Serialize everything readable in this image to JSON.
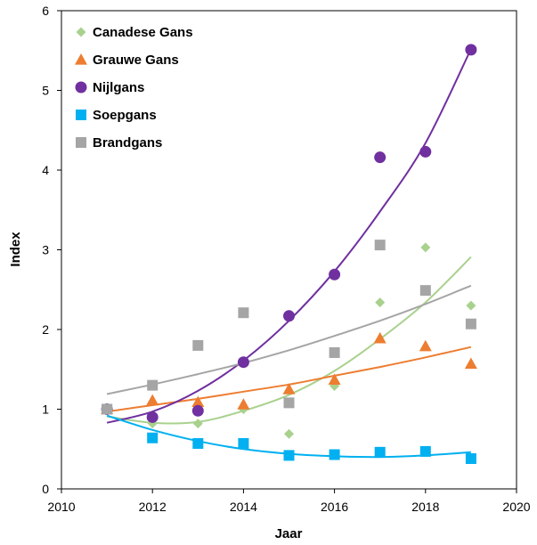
{
  "chart_data": {
    "type": "scatter",
    "xlabel": "Jaar",
    "ylabel": "Index",
    "xlim": [
      2010,
      2020
    ],
    "ylim": [
      0,
      6
    ],
    "x_ticks": [
      2010,
      2012,
      2014,
      2016,
      2018,
      2020
    ],
    "y_ticks": [
      0,
      1,
      2,
      3,
      4,
      5,
      6
    ],
    "grid": false,
    "legend_position": "top-left",
    "trendlines": true,
    "series": [
      {
        "name": "Canadese Gans",
        "marker": "diamond",
        "color": "#a9d18e",
        "x": [
          2011,
          2012,
          2013,
          2014,
          2015,
          2016,
          2017,
          2018,
          2019
        ],
        "y": [
          1.0,
          0.82,
          0.82,
          1.0,
          0.69,
          1.29,
          2.34,
          3.03,
          2.3
        ],
        "trend": {
          "kind": "poly2",
          "y": [
            0.91,
            0.83,
            0.84,
            0.98,
            1.18,
            1.48,
            1.88,
            2.34,
            2.91
          ]
        }
      },
      {
        "name": "Grauwe Gans",
        "marker": "triangle",
        "color": "#ed7d31",
        "x": [
          2011,
          2012,
          2013,
          2014,
          2015,
          2016,
          2017,
          2018,
          2019
        ],
        "y": [
          1.0,
          1.11,
          1.09,
          1.06,
          1.25,
          1.37,
          1.89,
          1.79,
          1.57
        ],
        "trend": {
          "kind": "exp",
          "y": [
            0.97,
            1.05,
            1.13,
            1.22,
            1.31,
            1.42,
            1.53,
            1.65,
            1.78
          ]
        }
      },
      {
        "name": "Nijlgans",
        "marker": "circle",
        "color": "#7030a0",
        "x": [
          2011,
          2012,
          2013,
          2014,
          2015,
          2016,
          2017,
          2018,
          2019
        ],
        "y": [
          1.0,
          0.9,
          0.98,
          1.59,
          2.17,
          2.69,
          4.16,
          4.23,
          5.51
        ],
        "trend": {
          "kind": "poly2",
          "y": [
            0.83,
            0.97,
            1.23,
            1.61,
            2.11,
            2.73,
            3.48,
            4.34,
            5.52
          ]
        }
      },
      {
        "name": "Soepgans",
        "marker": "square",
        "color": "#00b0f0",
        "x": [
          2011,
          2012,
          2013,
          2014,
          2015,
          2016,
          2017,
          2018,
          2019
        ],
        "y": [
          1.0,
          0.64,
          0.57,
          0.57,
          0.42,
          0.43,
          0.46,
          0.47,
          0.38
        ],
        "trend": {
          "kind": "poly2",
          "y": [
            0.92,
            0.74,
            0.6,
            0.5,
            0.44,
            0.41,
            0.4,
            0.42,
            0.46
          ]
        }
      },
      {
        "name": "Brandgans",
        "marker": "square",
        "color": "#a5a5a5",
        "x": [
          2011,
          2012,
          2013,
          2014,
          2015,
          2016,
          2017,
          2018,
          2019
        ],
        "y": [
          1.0,
          1.3,
          1.8,
          2.21,
          1.08,
          1.71,
          3.06,
          2.49,
          2.07
        ],
        "trend": {
          "kind": "exp",
          "y": [
            1.19,
            1.31,
            1.44,
            1.58,
            1.74,
            1.92,
            2.11,
            2.32,
            2.55
          ]
        }
      }
    ]
  }
}
